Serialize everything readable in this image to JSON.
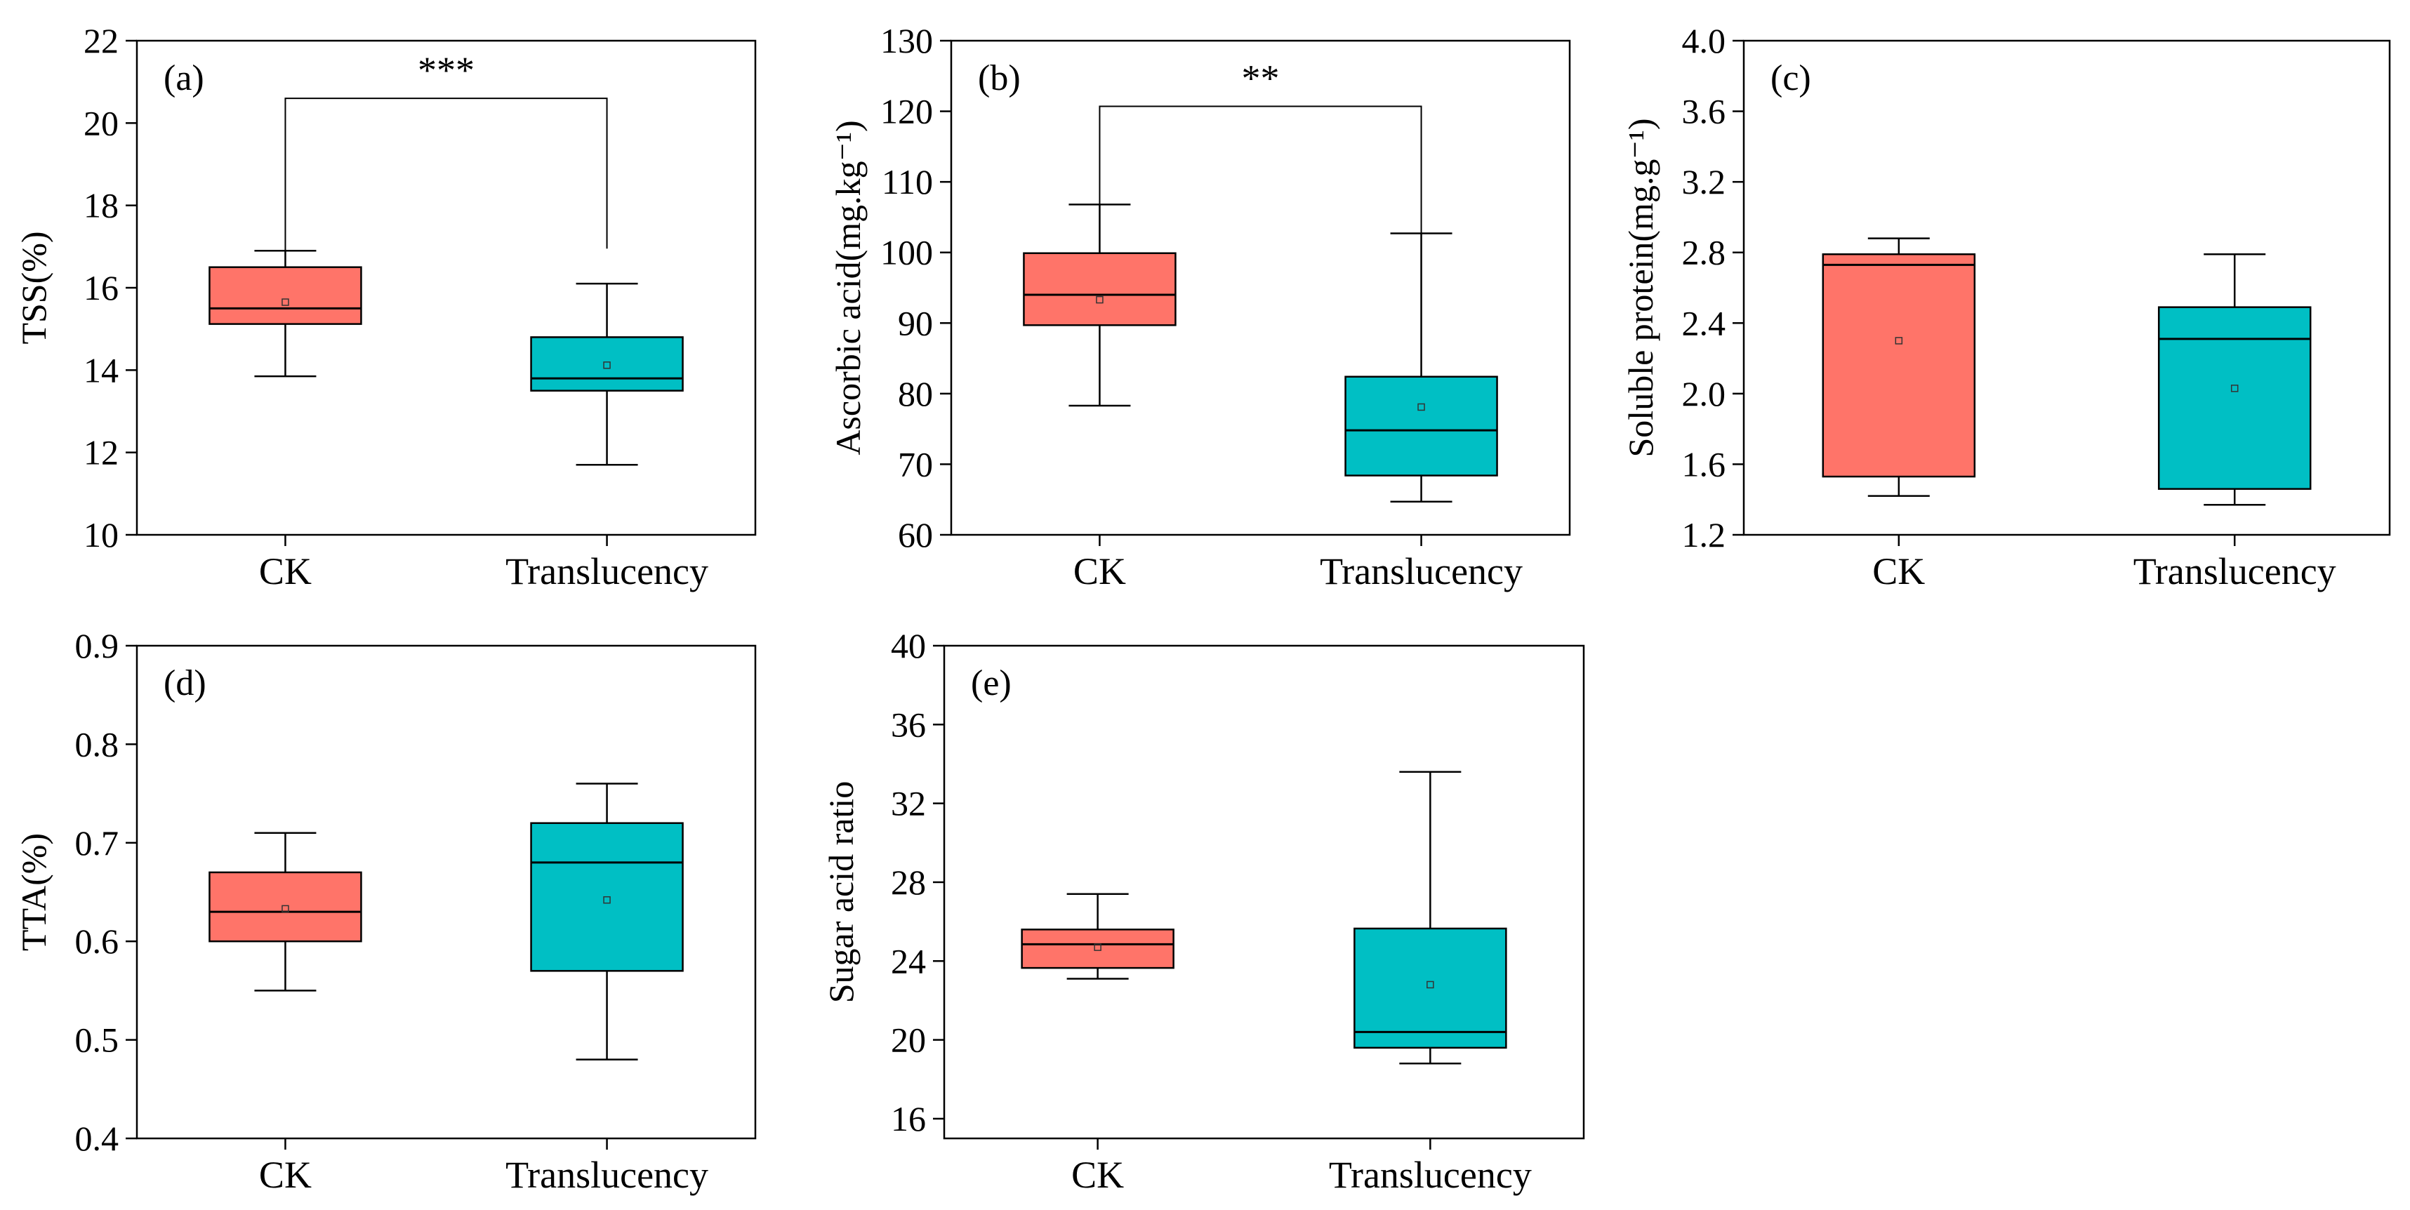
{
  "chart_data": [
    {
      "type": "box",
      "panel_label": "(a)",
      "ylabel": "TSS(%)",
      "ylim": [
        10,
        22
      ],
      "yticks": [
        "10",
        "12",
        "14",
        "16",
        "18",
        "20",
        "22"
      ],
      "categories": [
        "CK",
        "Translucency"
      ],
      "boxes": [
        {
          "category": "CK",
          "whisker_low": 13.85,
          "q1": 15.12,
          "median": 15.5,
          "q3": 16.5,
          "whisker_high": 16.9,
          "mean": 15.65,
          "color": "#FF7469"
        },
        {
          "category": "Translucency",
          "whisker_low": 11.7,
          "q1": 13.5,
          "median": 13.8,
          "q3": 14.8,
          "whisker_high": 16.1,
          "mean": 14.12,
          "color": "#00BFC4"
        }
      ],
      "significance": {
        "label": "***",
        "bracket_y": 20.6,
        "left_end": 16.9,
        "right_end": 16.95
      }
    },
    {
      "type": "box",
      "panel_label": "(b)",
      "ylabel": "Ascorbic acid(mg.kg⁻¹)",
      "ylim": [
        60,
        130
      ],
      "yticks": [
        "60",
        "70",
        "80",
        "90",
        "100",
        "110",
        "120",
        "130"
      ],
      "categories": [
        "CK",
        "Translucency"
      ],
      "boxes": [
        {
          "category": "CK",
          "whisker_low": 78.3,
          "q1": 89.7,
          "median": 94.0,
          "q3": 99.9,
          "whisker_high": 106.8,
          "mean": 93.3,
          "color": "#FF7469"
        },
        {
          "category": "Translucency",
          "whisker_low": 64.7,
          "q1": 68.4,
          "median": 74.8,
          "q3": 82.4,
          "whisker_high": 102.7,
          "mean": 78.1,
          "color": "#00BFC4"
        }
      ],
      "significance": {
        "label": "**",
        "bracket_y": 120.7,
        "left_end": 106.8,
        "right_end": 102.7
      }
    },
    {
      "type": "box",
      "panel_label": "(c)",
      "ylabel": "Soluble protein(mg.g⁻¹)",
      "ylim": [
        1.2,
        4.0
      ],
      "yticks": [
        "1.2",
        "1.6",
        "2.0",
        "2.4",
        "2.8",
        "3.2",
        "3.6",
        "4.0"
      ],
      "categories": [
        "CK",
        "Translucency"
      ],
      "boxes": [
        {
          "category": "CK",
          "whisker_low": 1.42,
          "q1": 1.53,
          "median": 2.73,
          "q3": 2.79,
          "whisker_high": 2.88,
          "mean": 2.3,
          "color": "#FF7469"
        },
        {
          "category": "Translucency",
          "whisker_low": 1.37,
          "q1": 1.46,
          "median": 2.31,
          "q3": 2.49,
          "whisker_high": 2.79,
          "mean": 2.03,
          "color": "#00BFC4"
        }
      ],
      "significance": null
    },
    {
      "type": "box",
      "panel_label": "(d)",
      "ylabel": "TTA(%)",
      "ylim": [
        0.4,
        0.9
      ],
      "yticks": [
        "0.4",
        "0.5",
        "0.6",
        "0.7",
        "0.8",
        "0.9"
      ],
      "categories": [
        "CK",
        "Translucency"
      ],
      "boxes": [
        {
          "category": "CK",
          "whisker_low": 0.55,
          "q1": 0.6,
          "median": 0.63,
          "q3": 0.67,
          "whisker_high": 0.71,
          "mean": 0.633,
          "color": "#FF7469"
        },
        {
          "category": "Translucency",
          "whisker_low": 0.48,
          "q1": 0.57,
          "median": 0.68,
          "q3": 0.72,
          "whisker_high": 0.76,
          "mean": 0.642,
          "color": "#00BFC4"
        }
      ],
      "significance": null
    },
    {
      "type": "box",
      "panel_label": "(e)",
      "ylabel": "Sugar acid ratio",
      "ylim": [
        15,
        40
      ],
      "yticks": [
        "16",
        "20",
        "24",
        "28",
        "32",
        "36",
        "40"
      ],
      "categories": [
        "CK",
        "Translucency"
      ],
      "boxes": [
        {
          "category": "CK",
          "whisker_low": 23.1,
          "q1": 23.65,
          "median": 24.85,
          "q3": 25.6,
          "whisker_high": 27.4,
          "mean": 24.7,
          "color": "#FF7469"
        },
        {
          "category": "Translucency",
          "whisker_low": 18.8,
          "q1": 19.6,
          "median": 20.4,
          "q3": 25.65,
          "whisker_high": 33.6,
          "mean": 22.8,
          "color": "#00BFC4"
        }
      ],
      "significance": null
    }
  ]
}
